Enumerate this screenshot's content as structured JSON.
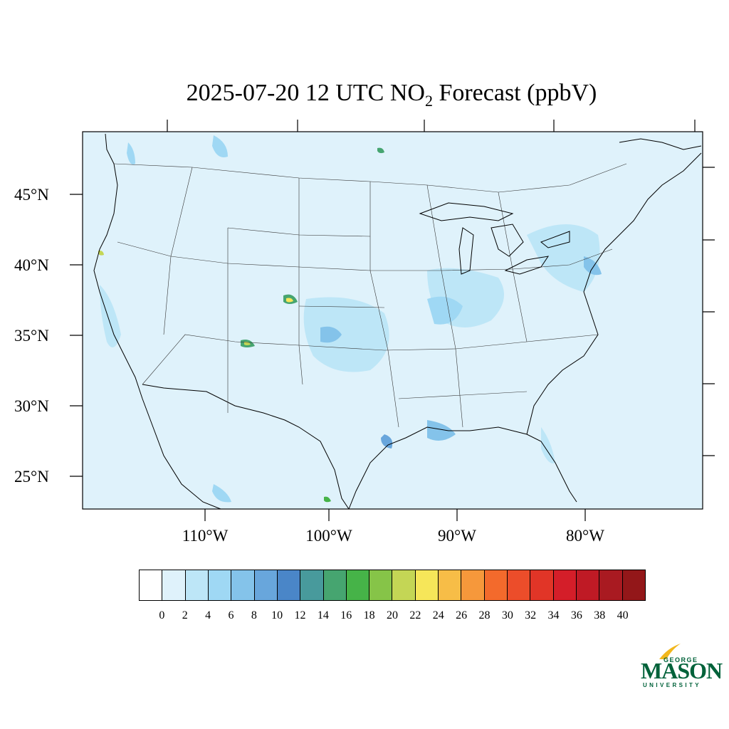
{
  "title": {
    "prefix": "2025-07-20 12 UTC NO",
    "subscript": "2",
    "suffix": " Forecast (ppbV)"
  },
  "map": {
    "lat_labels": [
      "45°N",
      "40°N",
      "35°N",
      "30°N",
      "25°N"
    ],
    "lon_labels": [
      "110°W",
      "100°W",
      "90°W",
      "80°W"
    ],
    "background_color": "#dff2fb",
    "boundary_color": "#000000"
  },
  "colorbar": {
    "colors": [
      "#ffffff",
      "#dff2fb",
      "#bde6f7",
      "#9fd8f4",
      "#84c3ea",
      "#68a6dc",
      "#4a86c8",
      "#489a9c",
      "#46a570",
      "#46b348",
      "#86c448",
      "#c4d655",
      "#f6e659",
      "#f7bd47",
      "#f6983b",
      "#f36a2c",
      "#ec4d2a",
      "#e13527",
      "#d41e29",
      "#bf1a25",
      "#a91a21",
      "#931719"
    ],
    "tick_labels": [
      "0",
      "2",
      "4",
      "6",
      "8",
      "10",
      "12",
      "14",
      "16",
      "18",
      "20",
      "22",
      "24",
      "26",
      "28",
      "30",
      "32",
      "34",
      "36",
      "38",
      "40"
    ]
  },
  "logo": {
    "line1": "GEORGE",
    "line2": "MASON",
    "line3": "UNIVERSITY",
    "color": "#00623a",
    "accent": "#f2b71d"
  }
}
